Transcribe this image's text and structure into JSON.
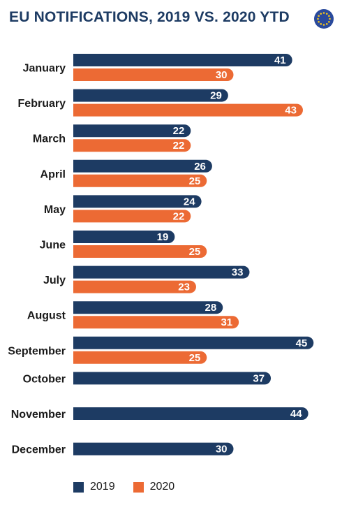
{
  "chart_data": {
    "type": "bar",
    "orientation": "horizontal",
    "title": "EU NOTIFICATIONS, 2019 VS. 2020 YTD",
    "categories": [
      "January",
      "February",
      "March",
      "April",
      "May",
      "June",
      "July",
      "August",
      "September",
      "October",
      "November",
      "December"
    ],
    "series": [
      {
        "name": "2019",
        "color": "#1d3b63",
        "values": [
          41,
          29,
          22,
          26,
          24,
          19,
          33,
          28,
          45,
          37,
          44,
          30
        ]
      },
      {
        "name": "2020",
        "color": "#ec6a34",
        "values": [
          30,
          43,
          22,
          25,
          22,
          25,
          23,
          31,
          25,
          null,
          null,
          null
        ]
      }
    ],
    "xlim": [
      0,
      46
    ],
    "data_labels": true,
    "legend_position": "bottom",
    "grid": false
  },
  "colors": {
    "title": "#1d3b63",
    "flag": "#2a4a9c",
    "flag_stars": "#f5c518"
  },
  "icons": {
    "corner_logo": "eu-flag-icon"
  }
}
